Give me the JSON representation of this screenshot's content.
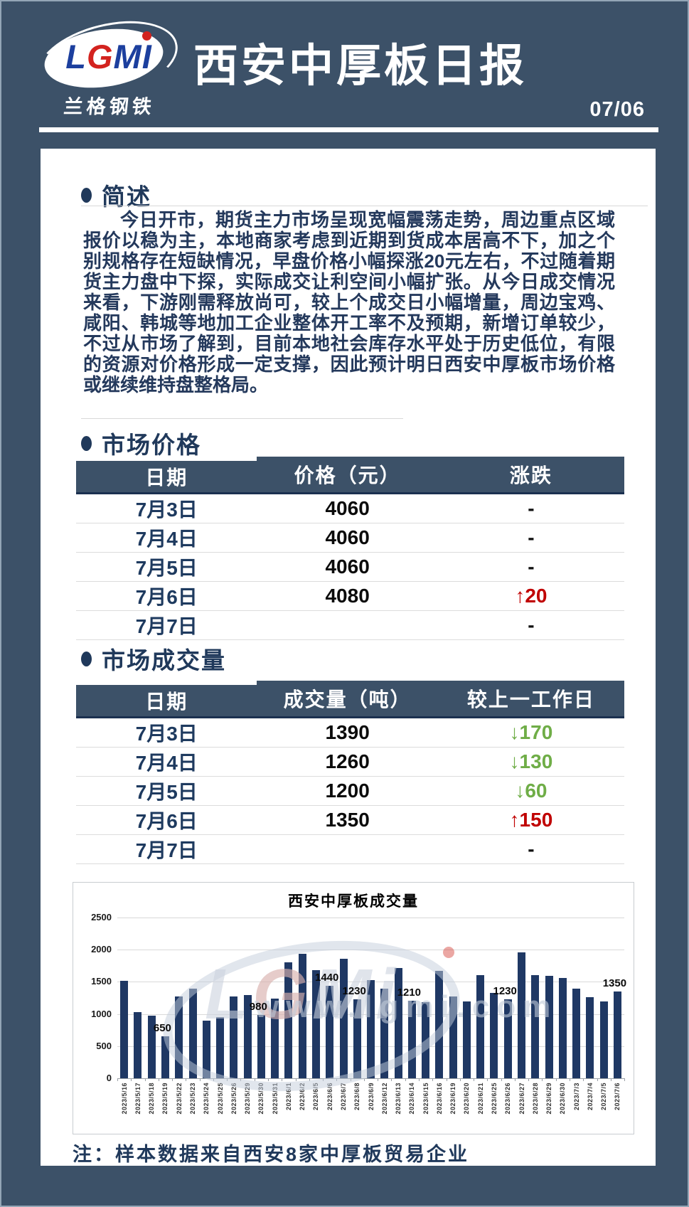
{
  "header": {
    "logo": {
      "letters": [
        {
          "ch": "L",
          "color": "blue"
        },
        {
          "ch": "G",
          "color": "red"
        },
        {
          "ch": "M",
          "color": "blue"
        },
        {
          "ch": "I",
          "color": "blue"
        }
      ],
      "subtext": "兰格钢铁"
    },
    "title": "西安中厚板日报",
    "date": "07/06"
  },
  "summary": {
    "heading": "简述",
    "body": "今日开市，期货主力市场呈现宽幅震荡走势，周边重点区域报价以稳为主，本地商家考虑到近期到货成本居高不下，加之个别规格存在短缺情况，早盘价格小幅探涨20元左右，不过随着期货主力盘中下探，实际成交让利空间小幅扩张。从今日成交情况来看，下游刚需释放尚可，较上个成交日小幅增量，周边宝鸡、咸阳、韩城等地加工企业整体开工率不及预期，新增订单较少，不过从市场了解到，目前本地社会库存水平处于历史低位，有限的资源对价格形成一定支撑，因此预计明日西安中厚板市场价格或继续维持盘整格局。"
  },
  "price_section": {
    "heading": "市场价格",
    "columns": [
      "日期",
      "价格（元）",
      "涨跌"
    ],
    "rows": [
      {
        "date": "7月3日",
        "value": "4060",
        "change": "-",
        "trend": "flat"
      },
      {
        "date": "7月4日",
        "value": "4060",
        "change": "-",
        "trend": "flat"
      },
      {
        "date": "7月5日",
        "value": "4060",
        "change": "-",
        "trend": "flat"
      },
      {
        "date": "7月6日",
        "value": "4080",
        "change": "↑20",
        "trend": "up"
      },
      {
        "date": "7月7日",
        "value": "",
        "change": "-",
        "trend": "flat"
      }
    ]
  },
  "volume_section": {
    "heading": "市场成交量",
    "columns": [
      "日期",
      "成交量（吨）",
      "较上一工作日"
    ],
    "rows": [
      {
        "date": "7月3日",
        "value": "1390",
        "change": "↓170",
        "trend": "down"
      },
      {
        "date": "7月4日",
        "value": "1260",
        "change": "↓130",
        "trend": "down"
      },
      {
        "date": "7月5日",
        "value": "1200",
        "change": "↓60",
        "trend": "down"
      },
      {
        "date": "7月6日",
        "value": "1350",
        "change": "↑150",
        "trend": "up"
      },
      {
        "date": "7月7日",
        "value": "",
        "change": "-",
        "trend": "flat"
      }
    ]
  },
  "chart_data": {
    "type": "bar",
    "title": "西安中厚板成交量",
    "xlabel": "",
    "ylabel": "",
    "ylim": [
      0,
      2500
    ],
    "yticks": [
      0,
      500,
      1000,
      1500,
      2000,
      2500
    ],
    "grid": true,
    "legend": false,
    "bar_color": "#1F3864",
    "watermark": "www.lgmi.com",
    "categories": [
      "2023/5/16",
      "2023/5/17",
      "2023/5/18",
      "2023/5/19",
      "2023/5/22",
      "2023/5/23",
      "2023/5/24",
      "2023/5/25",
      "2023/5/26",
      "2023/5/29",
      "2023/5/30",
      "2023/5/31",
      "2023/6/1",
      "2023/6/2",
      "2023/6/5",
      "2023/6/6",
      "2023/6/7",
      "2023/6/8",
      "2023/6/9",
      "2023/6/12",
      "2023/6/13",
      "2023/6/14",
      "2023/6/15",
      "2023/6/16",
      "2023/6/19",
      "2023/6/20",
      "2023/6/21",
      "2023/6/25",
      "2023/6/26",
      "2023/6/27",
      "2023/6/28",
      "2023/6/29",
      "2023/6/30",
      "2023/7/3",
      "2023/7/4",
      "2023/7/5",
      "2023/7/6"
    ],
    "values": [
      1520,
      1030,
      970,
      650,
      1270,
      1390,
      900,
      950,
      1270,
      1290,
      980,
      1240,
      1800,
      1940,
      1680,
      1440,
      1860,
      1230,
      1530,
      1390,
      1710,
      1210,
      1180,
      1670,
      1270,
      1190,
      1600,
      1330,
      1230,
      1960,
      1600,
      1590,
      1560,
      1390,
      1260,
      1200,
      1350
    ],
    "data_labels": [
      null,
      null,
      null,
      650,
      null,
      null,
      null,
      null,
      null,
      null,
      980,
      null,
      null,
      null,
      null,
      1440,
      null,
      1230,
      null,
      null,
      null,
      1210,
      null,
      null,
      null,
      null,
      null,
      null,
      1230,
      null,
      null,
      null,
      null,
      null,
      null,
      null,
      1350
    ]
  },
  "note": "注：样本数据来自西安8家中厚板贸易企业",
  "colors": {
    "page_bg": "#3C5168",
    "bar": "#1F3864",
    "up_red": "#C00000",
    "down_green": "#6FAD47",
    "navy_text": "#20395B"
  }
}
